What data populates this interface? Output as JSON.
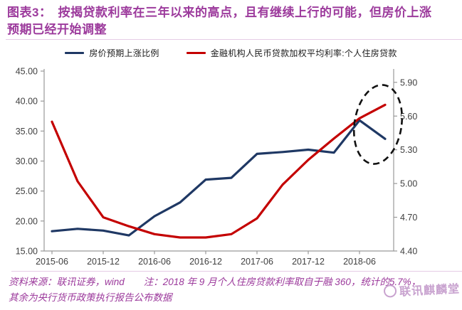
{
  "title": "图表3：　按揭贷款利率在三年以来的高点，且有继续上行的可能，但房价上涨预期已经开始调整",
  "legend": {
    "blue_label": "房价预期上涨比例",
    "red_label": "金融机构人民币贷款加权平均利率:个人住房贷款"
  },
  "footer": {
    "line1": "资料来源：联讯证券，wind　　注：2018 年 9 月个人住房贷款利率取自于融 360，统计的5.7%，",
    "line2": "其余为央行货币政策执行报告公布数据"
  },
  "watermark": "联讯麒麟堂",
  "colors": {
    "accent_purple": "#9C3A9C",
    "divider": "#E5CCE5",
    "watermark": "#C49BCB",
    "axis_text": "#3F3F3F",
    "axis_line": "#999999",
    "legend_text": "#1A1A1A",
    "annotation": "#111111"
  },
  "chart_data": {
    "type": "line",
    "categories": [
      "2015-06",
      "2015-09",
      "2015-12",
      "2016-03",
      "2016-06",
      "2016-09",
      "2016-12",
      "2017-03",
      "2017-06",
      "2017-09",
      "2017-12",
      "2018-03",
      "2018-06",
      "2018-09"
    ],
    "x_tick_labels": [
      "2015-06",
      "2015-12",
      "2016-06",
      "2016-12",
      "2017-06",
      "2017-12",
      "2018-06"
    ],
    "series": [
      {
        "name": "房价预期上涨比例",
        "axis": "left",
        "color": "#1F3864",
        "values": [
          18.3,
          18.7,
          18.4,
          17.6,
          20.8,
          23.1,
          26.9,
          27.2,
          31.2,
          31.5,
          31.9,
          31.4,
          36.8,
          33.7
        ]
      },
      {
        "name": "金融机构人民币贷款加权平均利率:个人住房贷款",
        "axis": "right",
        "color": "#C40000",
        "values": [
          5.55,
          5.02,
          4.7,
          4.62,
          4.55,
          4.52,
          4.52,
          4.55,
          4.69,
          4.99,
          5.21,
          5.4,
          5.58,
          5.7
        ]
      }
    ],
    "left_axis": {
      "min": 15,
      "max": 45,
      "tick_labels": [
        "45.00",
        "40.00",
        "35.00",
        "30.00",
        "25.00",
        "20.00",
        "15.00"
      ]
    },
    "right_axis": {
      "min": 4.4,
      "max": 6.0,
      "tick_labels": [
        "5.90",
        "5.60",
        "5.30",
        "5.00",
        "4.70",
        "4.40"
      ]
    },
    "grid": false,
    "legend_position": "top",
    "annotation": {
      "type": "dashed-ellipse",
      "highlights": "2018-09 endpoints of both lines"
    }
  }
}
